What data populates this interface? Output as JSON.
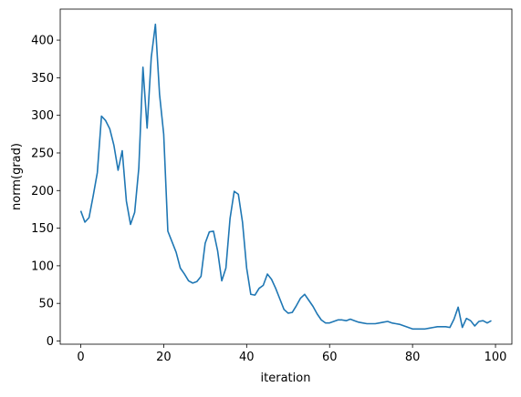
{
  "chart_data": {
    "type": "line",
    "xlabel": "iteration",
    "ylabel": "norm(grad)",
    "color": "#1f77b4",
    "x": [
      0,
      1,
      2,
      3,
      4,
      5,
      6,
      7,
      8,
      9,
      10,
      11,
      12,
      13,
      14,
      15,
      16,
      17,
      18,
      19,
      20,
      21,
      22,
      23,
      24,
      25,
      26,
      27,
      28,
      29,
      30,
      31,
      32,
      33,
      34,
      35,
      36,
      37,
      38,
      39,
      40,
      41,
      42,
      43,
      44,
      45,
      46,
      47,
      48,
      49,
      50,
      51,
      52,
      53,
      54,
      55,
      56,
      57,
      58,
      59,
      60,
      61,
      62,
      63,
      64,
      65,
      66,
      67,
      68,
      69,
      70,
      71,
      72,
      73,
      74,
      75,
      76,
      77,
      78,
      79,
      80,
      81,
      82,
      83,
      84,
      85,
      86,
      87,
      88,
      89,
      90,
      91,
      92,
      93,
      94,
      95,
      96,
      97,
      98,
      99
    ],
    "values": [
      173,
      158,
      164,
      193,
      224,
      299,
      293,
      282,
      260,
      227,
      253,
      186,
      155,
      171,
      230,
      364,
      283,
      377,
      421,
      328,
      275,
      146,
      132,
      118,
      97,
      89,
      80,
      77,
      79,
      86,
      130,
      145,
      146,
      120,
      80,
      97,
      163,
      199,
      195,
      158,
      97,
      62,
      61,
      70,
      74,
      89,
      82,
      70,
      56,
      42,
      37,
      38,
      47,
      57,
      62,
      54,
      46,
      36,
      28,
      24,
      24,
      26,
      28,
      28,
      27,
      29,
      27,
      25,
      24,
      23,
      23,
      23,
      24,
      25,
      26,
      24,
      23,
      22,
      20,
      18,
      16,
      16,
      16,
      16,
      17,
      18,
      19,
      19,
      19,
      18,
      29,
      45,
      18,
      30,
      27,
      20,
      26,
      27,
      24,
      27
    ],
    "xlim": [
      -4.95,
      103.95
    ],
    "ylim": [
      -4.25,
      441.25
    ],
    "xticks": [
      0,
      20,
      40,
      60,
      80,
      100
    ],
    "yticks": [
      0,
      50,
      100,
      150,
      200,
      250,
      300,
      350,
      400
    ]
  }
}
